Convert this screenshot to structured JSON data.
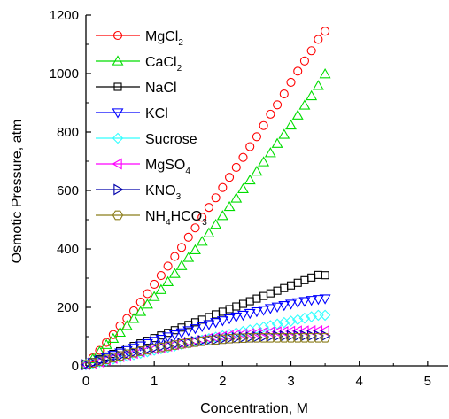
{
  "chart_data": {
    "type": "scatter",
    "xlabel": "Concentration, M",
    "ylabel": "Osmotic Pressure, atm",
    "xlim": [
      0,
      5.3
    ],
    "ylim": [
      0,
      1200
    ],
    "xticks": [
      0,
      1,
      2,
      3,
      4,
      5
    ],
    "yticks": [
      0,
      200,
      400,
      600,
      800,
      1000,
      1200
    ],
    "x_tick_labels": [
      "0",
      "1",
      "2",
      "3",
      "4",
      "5"
    ],
    "y_tick_labels": [
      "0",
      "200",
      "400",
      "600",
      "800",
      "1000",
      "1200"
    ],
    "legend_position": "top-left",
    "x_step": 0.1,
    "series": [
      {
        "name": "MgCl2",
        "label_main": "MgCl",
        "label_sub": "2",
        "label_tail": "",
        "color": "#ff0000",
        "marker": "circle",
        "values": [
          4,
          27,
          53,
          80,
          107,
          137,
          162,
          188,
          218,
          247,
          279,
          309,
          341,
          374,
          405,
          440,
          472,
          508,
          542,
          575,
          610,
          645,
          679,
          713,
          750,
          784,
          822,
          861,
          893,
          930,
          970,
          1008,
          1043,
          1078,
          1117,
          1145
        ]
      },
      {
        "name": "CaCl2",
        "label_main": "CaCl",
        "label_sub": "2",
        "label_tail": "",
        "color": "#00dd00",
        "marker": "triangle-up",
        "values": [
          4,
          23,
          48,
          72,
          93,
          114,
          137,
          161,
          185,
          210,
          236,
          260,
          287,
          315,
          342,
          370,
          396,
          425,
          454,
          483,
          513,
          544,
          573,
          605,
          635,
          665,
          697,
          728,
          760,
          791,
          823,
          857,
          891,
          923,
          958,
          998
        ]
      },
      {
        "name": "NaCl",
        "label_main": "NaCl",
        "label_sub": "",
        "label_tail": "",
        "color": "#000000",
        "marker": "square",
        "values": [
          4,
          13,
          22,
          32,
          41,
          50,
          59,
          68,
          77,
          86,
          95,
          104,
          113,
          122,
          131,
          140,
          149,
          158,
          167,
          176,
          185,
          194,
          203,
          212,
          221,
          230,
          239,
          248,
          257,
          266,
          275,
          284,
          293,
          302,
          311,
          310
        ]
      },
      {
        "name": "KCl",
        "label_main": "KCl",
        "label_sub": "",
        "label_tail": "",
        "color": "#0000ff",
        "marker": "triangle-down",
        "values": [
          4,
          12,
          20,
          29,
          37,
          45,
          53,
          61,
          69,
          77,
          85,
          92,
          100,
          107,
          114,
          121,
          128,
          135,
          142,
          149,
          155,
          162,
          168,
          174,
          180,
          186,
          191,
          197,
          202,
          207,
          212,
          217,
          221,
          225,
          228,
          230
        ]
      },
      {
        "name": "Sucrose",
        "label_main": "Sucrose",
        "label_sub": "",
        "label_tail": "",
        "color": "#33ffff",
        "marker": "diamond",
        "values": [
          4,
          8,
          13,
          18,
          23,
          28,
          33,
          38,
          43,
          48,
          53,
          58,
          63,
          68,
          73,
          78,
          83,
          88,
          93,
          98,
          103,
          108,
          113,
          118,
          123,
          128,
          133,
          138,
          143,
          148,
          153,
          158,
          163,
          168,
          173,
          173
        ]
      },
      {
        "name": "MgSO4",
        "label_main": "MgSO",
        "label_sub": "4",
        "label_tail": "",
        "color": "#ff00ff",
        "marker": "triangle-left",
        "values": [
          4,
          9,
          14,
          20,
          26,
          32,
          37,
          43,
          48,
          53,
          58,
          63,
          68,
          73,
          78,
          82,
          86,
          90,
          94,
          97,
          100,
          103,
          106,
          108,
          110,
          112,
          114,
          115,
          116,
          117,
          118,
          119,
          119,
          120,
          120,
          120
        ]
      },
      {
        "name": "KNO3",
        "label_main": "KNO",
        "label_sub": "3",
        "label_tail": "",
        "color": "#0000aa",
        "marker": "triangle-right",
        "values": [
          4,
          10,
          16,
          22,
          28,
          34,
          40,
          46,
          51,
          56,
          61,
          65,
          69,
          73,
          77,
          80,
          83,
          86,
          88,
          90,
          92,
          94,
          96,
          97,
          98,
          99,
          100,
          101,
          102,
          102,
          103,
          103,
          103,
          103,
          103,
          103
        ]
      },
      {
        "name": "NH4HCO3",
        "label_main": "NH",
        "label_sub": "4",
        "label_tail": "HCO",
        "label_sub2": "3",
        "color": "#8b7d1a",
        "marker": "hexagon",
        "values": [
          4,
          10,
          16,
          22,
          28,
          34,
          40,
          45,
          50,
          55,
          59,
          63,
          67,
          71,
          75,
          78,
          81,
          84,
          87,
          89,
          91,
          93,
          94,
          95,
          96,
          96,
          96,
          96,
          96,
          96,
          96,
          96,
          96,
          96,
          96,
          96
        ]
      }
    ]
  }
}
